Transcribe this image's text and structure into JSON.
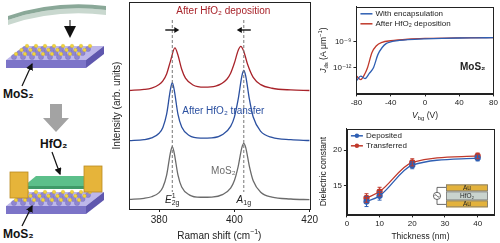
{
  "schematic": {
    "labels": [
      "MoS₂",
      "HfO₂",
      "MoS₂"
    ]
  },
  "chart_data": [
    {
      "type": "line",
      "x_label": [
        {
          "t": "Raman shift (cm"
        },
        {
          "t": "−1",
          "sup": true
        },
        {
          "t": ")"
        }
      ],
      "y_label": "Intensity (arb. units)",
      "xlim": [
        372,
        420
      ],
      "xticks": [
        380,
        400,
        420
      ],
      "ylim": [
        0,
        12
      ],
      "tick_labels": "x",
      "grid": false,
      "series": [
        {
          "name": "MoS₂",
          "color": "#6b6b6b",
          "x": [
            372,
            376,
            378,
            380,
            381,
            382,
            383,
            383.5,
            384,
            385,
            386,
            388,
            391,
            394,
            397,
            399,
            400,
            401,
            402,
            402.5,
            403,
            404,
            405,
            407,
            410,
            415,
            420
          ],
          "values": [
            0.56,
            0.62,
            0.71,
            0.95,
            1.26,
            1.96,
            3.26,
            3.62,
            3.26,
            1.98,
            1.28,
            0.82,
            0.68,
            0.69,
            0.85,
            1.21,
            1.65,
            2.46,
            3.57,
            3.81,
            3.57,
            2.46,
            1.64,
            0.97,
            0.69,
            0.58,
            0.54
          ]
        },
        {
          "name": "After HfO₂ transfer",
          "color": "#2b50a0",
          "x": [
            372,
            376,
            378,
            380,
            381,
            382,
            383,
            383.5,
            384,
            385,
            386,
            388,
            391,
            394,
            397,
            399,
            400,
            401,
            402,
            402.5,
            403,
            404,
            405,
            407,
            410,
            415,
            420
          ],
          "values": [
            3.96,
            4.02,
            4.12,
            4.39,
            4.73,
            5.5,
            6.92,
            7.32,
            6.92,
            5.5,
            4.76,
            4.26,
            4.11,
            4.12,
            4.33,
            4.79,
            5.33,
            6.35,
            7.72,
            8.03,
            7.72,
            6.35,
            5.33,
            4.5,
            4.15,
            4.02,
            3.97
          ]
        },
        {
          "name": "After HfO₂ deposition",
          "color": "#a8232a",
          "x": [
            372,
            376,
            378,
            380,
            381,
            382,
            383,
            384.2,
            385,
            386,
            387,
            389,
            392,
            395,
            398,
            399,
            400,
            401,
            401.7,
            402.5,
            403.5,
            405,
            407,
            410,
            415,
            420
          ],
          "values": [
            6.87,
            6.93,
            7.01,
            7.22,
            7.43,
            7.83,
            8.56,
            9.34,
            8.93,
            8.1,
            7.59,
            7.19,
            7.06,
            7.12,
            7.52,
            7.87,
            8.46,
            9.19,
            9.43,
            9.13,
            8.39,
            7.63,
            7.21,
            7.0,
            6.9,
            6.87
          ]
        }
      ],
      "annotations": [
        {
          "x": 383.5,
          "label": [
            {
              "t": "E",
              "i": true
            },
            {
              "t": "2g",
              "sub": true
            },
            {
              "t": "1",
              "sup": true,
              "stack": true
            }
          ]
        },
        {
          "x": 402.5,
          "label": [
            {
              "t": "A",
              "i": true
            },
            {
              "t": "1g",
              "sub": true
            }
          ]
        }
      ]
    },
    {
      "type": "line",
      "x_label": [
        {
          "t": "V",
          "i": true
        },
        {
          "t": "bg",
          "sub": true
        },
        {
          "t": " (V)"
        }
      ],
      "y_label": [
        {
          "t": "J",
          "i": true
        },
        {
          "t": "ds",
          "sub": true
        },
        {
          "t": " (A μm"
        },
        {
          "t": "−1",
          "sup": true
        },
        {
          "t": ")"
        }
      ],
      "xlim": [
        -80,
        80
      ],
      "xticks": [
        -80,
        -40,
        0,
        40,
        80
      ],
      "ylim": [
        1e-15,
        1e-05
      ],
      "yticks": [
        {
          "value": 1e-12,
          "label": "10⁻¹²"
        },
        {
          "value": 1e-09,
          "label": "10⁻⁹"
        }
      ],
      "log": "y",
      "grid": false,
      "legend": "upper left",
      "series": [
        {
          "name": "With encapsulation",
          "color": "#2f5fb3",
          "x": [
            -80,
            -75,
            -70,
            -65,
            -60,
            -55,
            -50,
            -45,
            -40,
            -30,
            -20,
            0,
            20,
            40,
            60,
            80
          ],
          "values": [
            3e-14,
            1e-13,
            5e-14,
            2e-13,
            1e-12,
            3e-11,
            2e-10,
            6e-10,
            9e-10,
            1.3e-09,
            1.6e-09,
            2e-09,
            2.3e-09,
            2.5e-09,
            2.6e-09,
            2.7e-09
          ]
        },
        {
          "name": "After HfO₂ deposition",
          "color": "#c0392b",
          "x": [
            -80,
            -75,
            -70,
            -67,
            -62,
            -57,
            -50,
            -40,
            -20,
            0,
            40,
            80
          ],
          "values": [
            1e-13,
            4e-14,
            2e-13,
            1e-12,
            5e-11,
            3e-10,
            8e-10,
            1.2e-09,
            1.8e-09,
            2.2e-09,
            2.6e-09,
            2.8e-09
          ]
        }
      ],
      "annotations": [
        "MoS₂"
      ]
    },
    {
      "type": "line",
      "x_label": "Thickness (nm)",
      "y_label": "Dielectric constant",
      "xlim": [
        0,
        45
      ],
      "xticks": [
        0,
        10,
        20,
        30,
        40
      ],
      "ylim": [
        11,
        23
      ],
      "yticks": [
        15,
        20
      ],
      "grid": false,
      "legend": "upper left",
      "marker": "circle",
      "series": [
        {
          "name": "Deposited",
          "color": "#2f5fb3",
          "x": [
            6,
            10,
            20,
            40
          ],
          "values": [
            12.8,
            13.6,
            17.9,
            18.9
          ],
          "error": [
            0.7,
            0.6,
            0.5,
            0.4
          ]
        },
        {
          "name": "Transferred",
          "color": "#c0392b",
          "x": [
            6,
            10,
            20,
            40
          ],
          "values": [
            13.3,
            14.2,
            18.3,
            19.2
          ],
          "error": [
            0.6,
            0.6,
            0.5,
            0.4
          ]
        }
      ],
      "annotations": [
        "Au",
        "HfO₂",
        "Au"
      ]
    }
  ]
}
